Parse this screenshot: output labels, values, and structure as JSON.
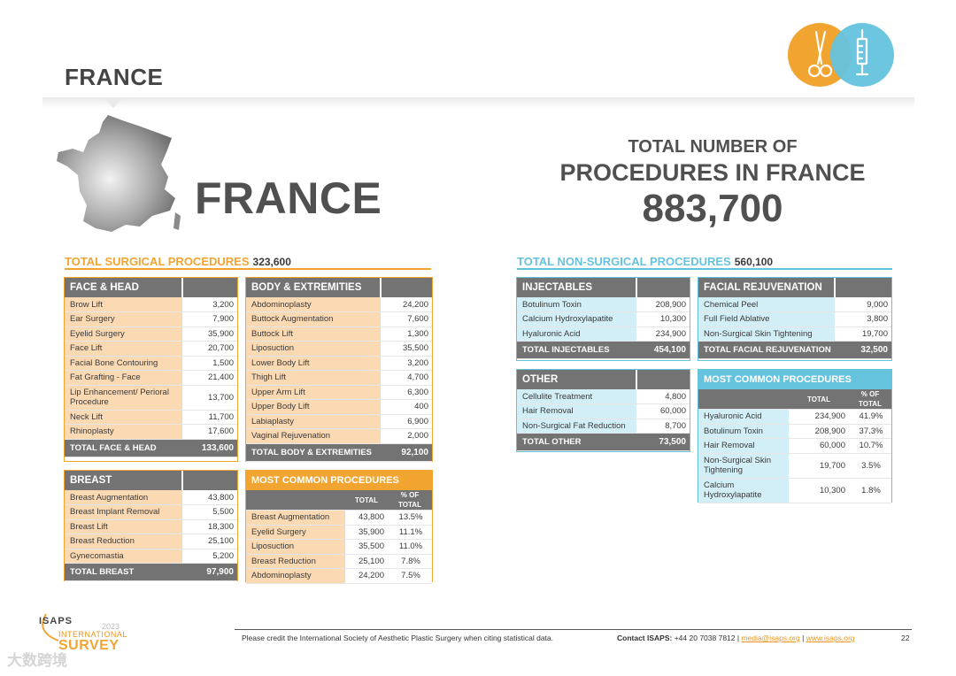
{
  "page_title": "FRANCE",
  "country_name": "FRANCE",
  "totals": {
    "line1": "TOTAL NUMBER OF",
    "line2": "PROCEDURES IN FRANCE",
    "value": "883,700"
  },
  "colors": {
    "orange": "#f2a431",
    "blue": "#66c3de",
    "gray": "#737373",
    "peach": "#fbd9b3",
    "lightblue": "#d2eef6"
  },
  "icons": [
    "scissors-icon",
    "syringe-icon",
    "france-map-icon"
  ],
  "surgical": {
    "heading": "TOTAL SURGICAL PROCEDURES",
    "count": "323,600",
    "face_head": {
      "title": "FACE & HEAD",
      "rows": [
        [
          "Brow Lift",
          "3,200"
        ],
        [
          "Ear Surgery",
          "7,900"
        ],
        [
          "Eyelid Surgery",
          "35,900"
        ],
        [
          "Face Lift",
          "20,700"
        ],
        [
          "Facial Bone Contouring",
          "1,500"
        ],
        [
          "Fat Grafting - Face",
          "21,400"
        ],
        [
          "Lip Enhancement/ Perioral Procedure",
          "13,700"
        ],
        [
          "Neck Lift",
          "11,700"
        ],
        [
          "Rhinoplasty",
          "17,600"
        ]
      ],
      "total_label": "TOTAL FACE & HEAD",
      "total": "133,600"
    },
    "body": {
      "title": "BODY & EXTREMITIES",
      "rows": [
        [
          "Abdominoplasty",
          "24,200"
        ],
        [
          "Buttock Augmentation",
          "7,600"
        ],
        [
          "Buttock Lift",
          "1,300"
        ],
        [
          "Liposuction",
          "35,500"
        ],
        [
          "Lower Body Lift",
          "3,200"
        ],
        [
          "Thigh Lift",
          "4,700"
        ],
        [
          "Upper Arm Lift",
          "6,300"
        ],
        [
          "Upper Body Lift",
          "400"
        ],
        [
          "Labiaplasty",
          "6,900"
        ],
        [
          "Vaginal Rejuvenation",
          "2,000"
        ]
      ],
      "total_label": "TOTAL BODY & EXTREMITIES",
      "total": "92,100"
    },
    "breast": {
      "title": "BREAST",
      "rows": [
        [
          "Breast Augmentation",
          "43,800"
        ],
        [
          "Breast Implant Removal",
          "5,500"
        ],
        [
          "Breast Lift",
          "18,300"
        ],
        [
          "Breast Reduction",
          "25,100"
        ],
        [
          "Gynecomastia",
          "5,200"
        ]
      ],
      "total_label": "TOTAL BREAST",
      "total": "97,900"
    },
    "most_common": {
      "title": "MOST COMMON PROCEDURES",
      "col_total": "TOTAL",
      "col_pct": "% OF TOTAL",
      "rows": [
        [
          "Breast Augmentation",
          "43,800",
          "13.5%"
        ],
        [
          "Eyelid Surgery",
          "35,900",
          "11.1%"
        ],
        [
          "Liposuction",
          "35,500",
          "11.0%"
        ],
        [
          "Breast Reduction",
          "25,100",
          "7.8%"
        ],
        [
          "Abdominoplasty",
          "24,200",
          "7.5%"
        ]
      ]
    }
  },
  "nonsurgical": {
    "heading": "TOTAL NON-SURGICAL PROCEDURES",
    "count": "560,100",
    "injectables": {
      "title": "INJECTABLES",
      "rows": [
        [
          "Botulinum Toxin",
          "208,900"
        ],
        [
          "Calcium Hydroxylapatite",
          "10,300"
        ],
        [
          "Hyaluronic Acid",
          "234,900"
        ]
      ],
      "total_label": "TOTAL INJECTABLES",
      "total": "454,100"
    },
    "facial": {
      "title": "FACIAL REJUVENATION",
      "rows": [
        [
          "Chemical Peel",
          "9,000"
        ],
        [
          "Full Field Ablative",
          "3,800"
        ],
        [
          "Non-Surgical Skin Tightening",
          "19,700"
        ]
      ],
      "total_label": "TOTAL FACIAL REJUVENATION",
      "total": "32,500"
    },
    "other": {
      "title": "OTHER",
      "rows": [
        [
          "Cellulite Treatment",
          "4,800"
        ],
        [
          "Hair Removal",
          "60,000"
        ],
        [
          "Non-Surgical Fat Reduction",
          "8,700"
        ]
      ],
      "total_label": "TOTAL OTHER",
      "total": "73,500"
    },
    "most_common": {
      "title": "MOST COMMON PROCEDURES",
      "col_total": "TOTAL",
      "col_pct": "% OF TOTAL",
      "rows": [
        [
          "Hyaluronic Acid",
          "234,900",
          "41.9%"
        ],
        [
          "Botulinum Toxin",
          "208,900",
          "37.3%"
        ],
        [
          "Hair Removal",
          "60,000",
          "10.7%"
        ],
        [
          "Non-Surgical Skin Tightening",
          "19,700",
          "3.5%"
        ],
        [
          "Calcium Hydroxylapatite",
          "10,300",
          "1.8%"
        ]
      ]
    }
  },
  "footer": {
    "credit": "Please credit the International Society of Aesthetic Plastic Surgery when citing statistical data.",
    "contact_label": "Contact ISAPS:",
    "phone": "+44 20 7038 7812 |",
    "email": "media@isaps.org",
    "sep": "|",
    "website": "www.isaps.org",
    "page": "22"
  },
  "logo": {
    "name": "ISAPS",
    "year": "2023",
    "line1": "INTERNATIONAL",
    "line2": "SURVEY"
  },
  "watermark": "大数跨境"
}
